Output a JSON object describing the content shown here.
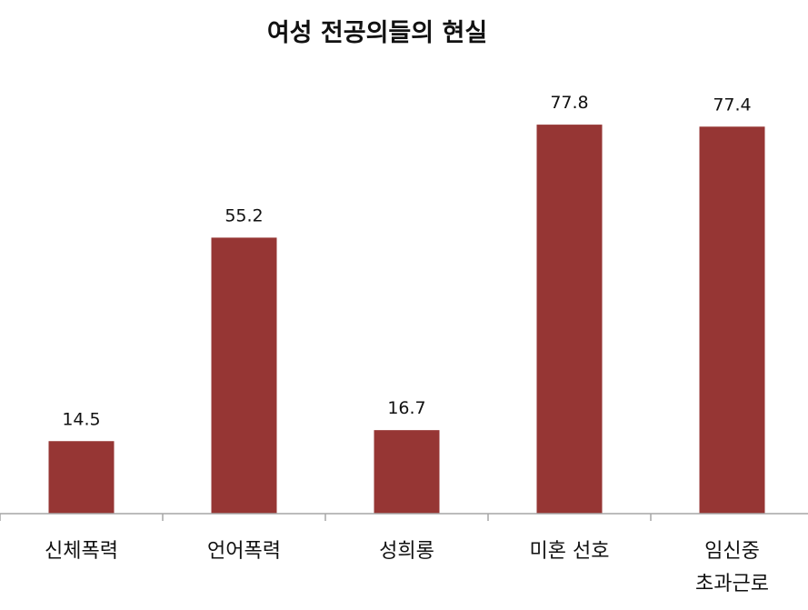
{
  "chart_data": {
    "type": "bar",
    "title": "여성 전공의들의 현실",
    "xlabel": "",
    "ylabel": "",
    "categories": [
      [
        "신체폭력"
      ],
      [
        "언어폭력"
      ],
      [
        "성희롱"
      ],
      [
        "미혼 선호"
      ],
      [
        "임신중",
        "초과근로"
      ]
    ],
    "values": [
      14.5,
      55.2,
      16.7,
      77.8,
      77.4
    ],
    "value_labels": [
      "14.5",
      "55.2",
      "16.7",
      "77.8",
      "77.4"
    ],
    "ylim": [
      0,
      100
    ],
    "grid": false,
    "legend": "none",
    "bar_color": "#963634",
    "axis_color": "#a6a6a6"
  }
}
